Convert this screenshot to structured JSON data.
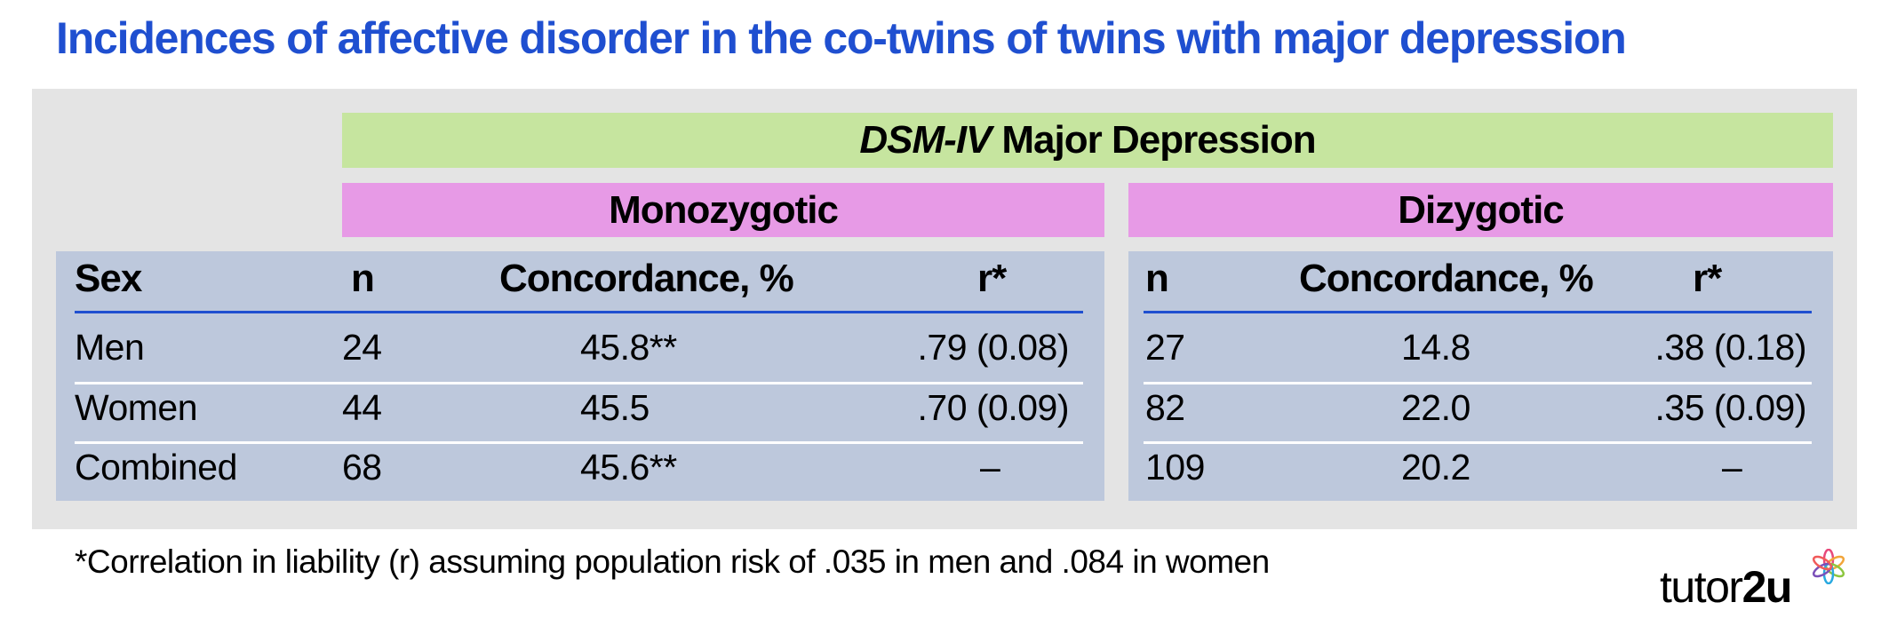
{
  "title": "Incidences of affective disorder in the co-twins of twins with major depression",
  "header": {
    "diagnosis_italic": "DSM-IV",
    "diagnosis_rest": "Major Depression",
    "group_mz": "Monozygotic",
    "group_dz": "Dizygotic"
  },
  "columns": {
    "sex": "Sex",
    "n": "n",
    "concordance": "Concordance, %",
    "r": "r*"
  },
  "rows": [
    {
      "sex": "Men",
      "mz_n": "24",
      "mz_conc": "45.8**",
      "mz_r": ".79 (0.08)",
      "dz_n": "27",
      "dz_conc": "14.8",
      "dz_r": ".38 (0.18)"
    },
    {
      "sex": "Women",
      "mz_n": "44",
      "mz_conc": "45.5",
      "mz_r": ".70 (0.09)",
      "dz_n": "82",
      "dz_conc": "22.0",
      "dz_r": ".35 (0.09)"
    },
    {
      "sex": "Combined",
      "mz_n": "68",
      "mz_conc": "45.6**",
      "mz_r": "–",
      "dz_n": "109",
      "dz_conc": "20.2",
      "dz_r": "–"
    }
  ],
  "footnote": "*Correlation in liability (r) assuming population risk of .035 in men and .084 in women",
  "logo": {
    "part1": "tutor",
    "part2": "2u"
  },
  "colors": {
    "title": "#1f4fd0",
    "panel": "#e4e4e4",
    "band_green": "#c6e59f",
    "band_pink": "#e79ae6",
    "table_bg": "#bdc8dc",
    "rule": "#1f4fd0"
  }
}
